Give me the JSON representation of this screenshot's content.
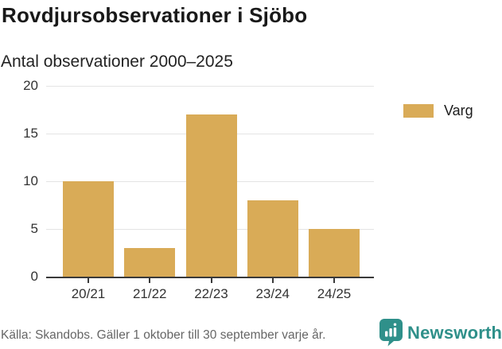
{
  "header": {
    "title": "Rovdjursobservationer i Sjöbo",
    "subtitle": "Antal observationer 2000–2025"
  },
  "legend": {
    "items": [
      {
        "label": "Varg",
        "color": "#d9ab57"
      }
    ]
  },
  "footer": {
    "source": "Källa: Skandobs. Gäller 1 oktober till 30 september varje år.",
    "brand": "Newsworthy"
  },
  "colors": {
    "bar": "#d9ab57",
    "brand_teal": "#2f908a",
    "grid": "#e4e4e4",
    "axis": "#3a3a3a",
    "text_dark": "#191919",
    "text_gray": "#666666"
  },
  "chart_data": {
    "type": "bar",
    "categories": [
      "20/21",
      "21/22",
      "22/23",
      "23/24",
      "24/25"
    ],
    "series": [
      {
        "name": "Varg",
        "values": [
          10,
          3,
          17,
          8,
          5
        ],
        "color": "#d9ab57"
      }
    ],
    "title": "Rovdjursobservationer i Sjöbo",
    "subtitle": "Antal observationer 2000–2025",
    "xlabel": "",
    "ylabel": "",
    "ylim": [
      0,
      20
    ],
    "yticks": [
      0,
      5,
      10,
      15,
      20
    ],
    "grid": true,
    "legend_position": "right"
  }
}
